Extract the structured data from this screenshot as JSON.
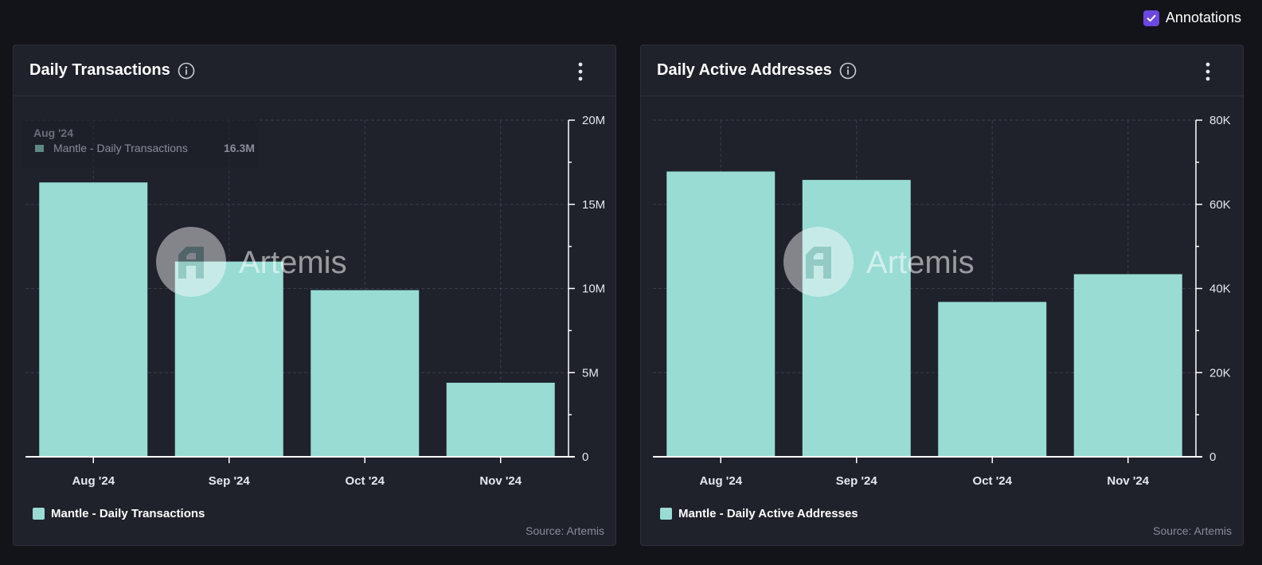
{
  "toolbar": {
    "annotations_label": "Annotations",
    "annotations_checked": true,
    "checkbox_color": "#6c47e0"
  },
  "colors": {
    "bar": "#98dcd3",
    "grid": "#3a3d4c",
    "axis": "#ffffff"
  },
  "watermark": "Artemis",
  "charts": [
    {
      "title": "Daily Transactions",
      "legend_label": "Mantle - Daily Transactions",
      "source_prefix": "Source: ",
      "source_name": "Artemis",
      "tooltip": {
        "title": "Aug '24",
        "series": "Mantle - Daily Transactions",
        "value": "16.3M"
      }
    },
    {
      "title": "Daily Active Addresses",
      "legend_label": "Mantle - Daily Active Addresses",
      "source_prefix": "Source: ",
      "source_name": "Artemis"
    }
  ],
  "chart_data": [
    {
      "type": "bar",
      "title": "Daily Transactions",
      "categories": [
        "Aug '24",
        "Sep '24",
        "Oct '24",
        "Nov '24"
      ],
      "series": [
        {
          "name": "Mantle - Daily Transactions",
          "values": [
            16300000,
            11600000,
            9900000,
            4400000
          ]
        }
      ],
      "ylim": [
        0,
        20000000
      ],
      "yticks": [
        0,
        5000000,
        10000000,
        15000000,
        20000000
      ],
      "ytick_labels": [
        "0",
        "5M",
        "10M",
        "15M",
        "20M"
      ],
      "grid": true,
      "legend": "bottom-left"
    },
    {
      "type": "bar",
      "title": "Daily Active Addresses",
      "categories": [
        "Aug '24",
        "Sep '24",
        "Oct '24",
        "Nov '24"
      ],
      "series": [
        {
          "name": "Mantle - Daily Active Addresses",
          "values": [
            67800,
            65800,
            36800,
            43400
          ]
        }
      ],
      "ylim": [
        0,
        80000
      ],
      "yticks": [
        0,
        20000,
        40000,
        60000,
        80000
      ],
      "ytick_labels": [
        "0",
        "20K",
        "40K",
        "60K",
        "80K"
      ],
      "grid": true,
      "legend": "bottom-left"
    }
  ]
}
